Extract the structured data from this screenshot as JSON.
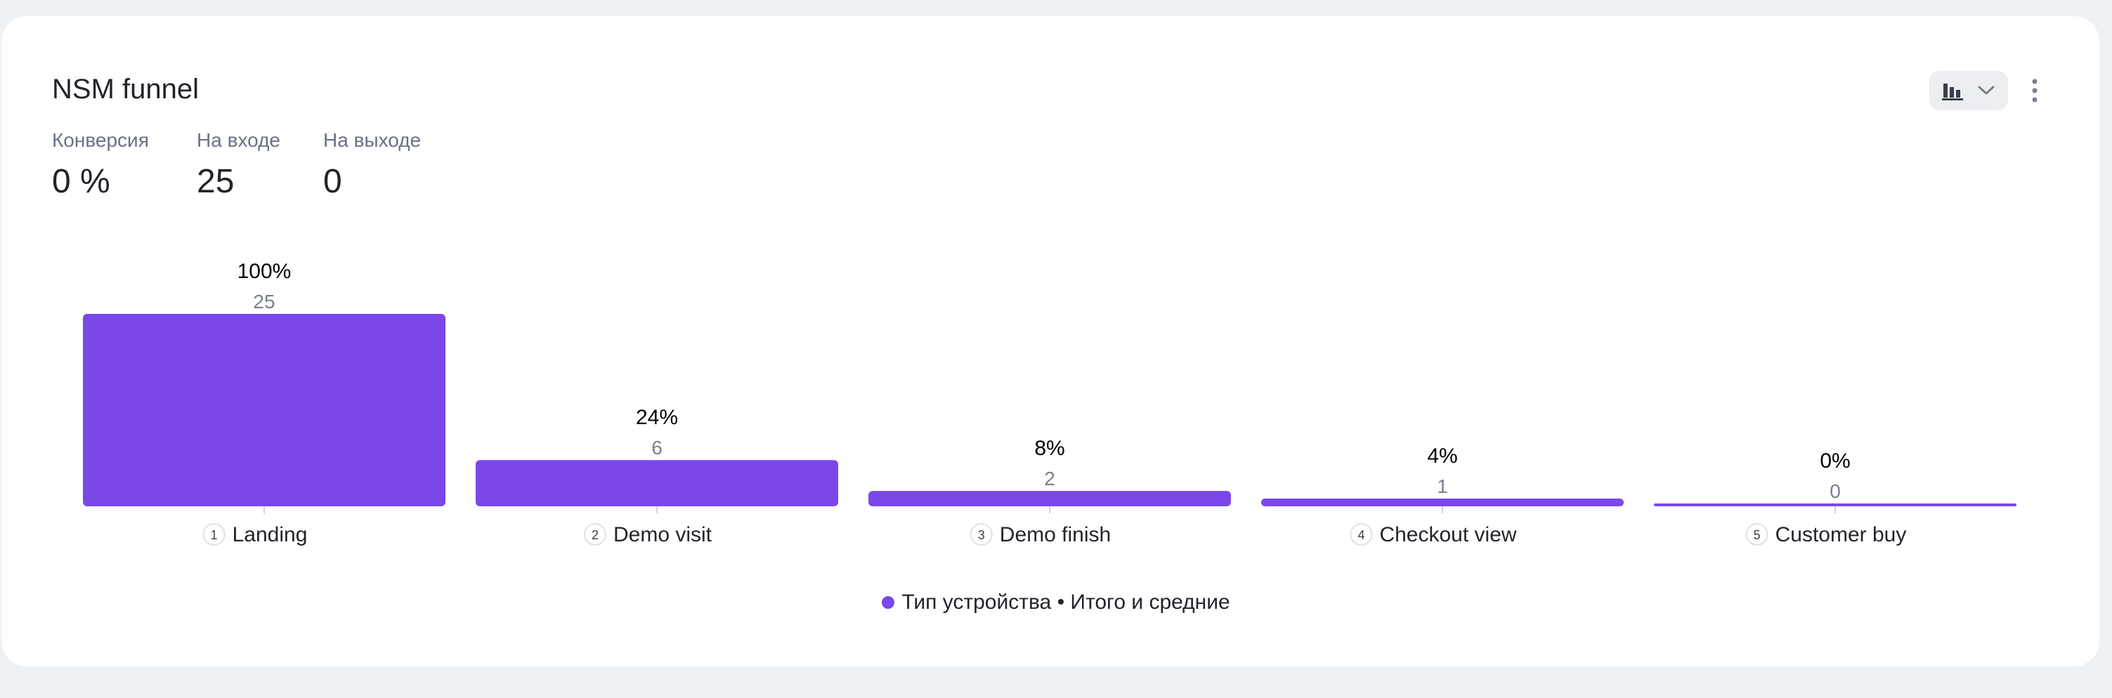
{
  "widget": {
    "title": "NSM funnel",
    "metrics": [
      {
        "label": "Конверсия",
        "value": "0 %"
      },
      {
        "label": "На входе",
        "value": "25"
      },
      {
        "label": "На выходе",
        "value": "0"
      }
    ]
  },
  "controls": {
    "chart_type_icon": "bar-chart-icon",
    "dropdown_icon": "chevron-down-icon",
    "more_icon": "more-vertical-icon"
  },
  "legend": {
    "label": "Тип устройства • Итого и средние",
    "color": "#7b47e8"
  },
  "colors": {
    "bar": "#7b47e8",
    "percent_text": "#000000",
    "count_text": "#7a7f8c",
    "badge_bg": "#eceef2"
  },
  "chart_data": {
    "type": "bar",
    "subtype": "funnel",
    "categories": [
      "Landing",
      "Demo visit",
      "Demo finish",
      "Checkout view",
      "Customer buy"
    ],
    "steps": [
      "1",
      "2",
      "3",
      "4",
      "5"
    ],
    "values": [
      25,
      6,
      2,
      1,
      0
    ],
    "percent_labels": [
      "100%",
      "24%",
      "8%",
      "4%",
      "0%"
    ],
    "count_labels": [
      "25",
      "6",
      "2",
      "1",
      "0"
    ],
    "ylim": [
      0,
      25
    ],
    "series": [
      {
        "name": "Тип устройства • Итого и средние",
        "values": [
          25,
          6,
          2,
          1,
          0
        ]
      }
    ]
  }
}
